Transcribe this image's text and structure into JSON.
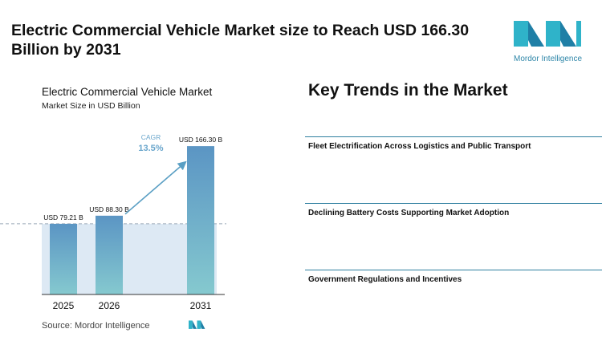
{
  "headline": "Electric Commercial Vehicle Market size to Reach USD 166.30 Billion by 2031",
  "brand": {
    "name": "Mordor Intelligence",
    "color": "#2e86a8",
    "icon": "mordor-logo-icon"
  },
  "source": "Source: Mordor Intelligence",
  "key_trends": {
    "title": "Key Trends in the Market",
    "items": [
      {
        "label": "Fleet Electrification Across Logistics and Public Transport"
      },
      {
        "label": "Declining Battery Costs Supporting Market Adoption"
      },
      {
        "label": "Government Regulations and Incentives"
      }
    ]
  },
  "chart_data": {
    "type": "bar",
    "title": "Electric Commercial Vehicle Market",
    "subtitle": "Market Size in USD Billion",
    "categories": [
      "2025",
      "2026",
      "2031"
    ],
    "values": [
      79.21,
      88.3,
      166.3
    ],
    "data_labels": [
      "USD 79.21 B",
      "USD 88.30 B",
      "USD 166.30 B"
    ],
    "ylim": [
      0,
      170
    ],
    "grid": false,
    "annotation": {
      "label": "CAGR",
      "value": "13.5%"
    },
    "colors": {
      "bar_top": "#5b95c4",
      "bar_bottom": "#85c9cf",
      "shade": "#dde9f4",
      "arrow": "#5a9fc4",
      "cagr": "#6aa6cc"
    }
  }
}
